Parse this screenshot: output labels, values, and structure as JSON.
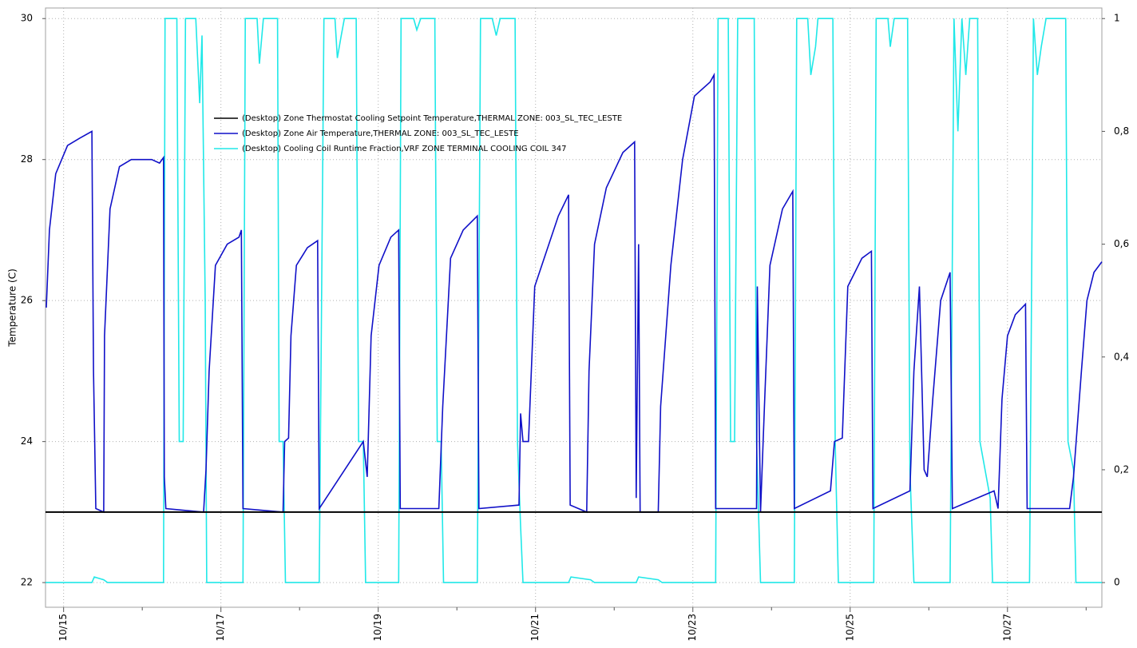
{
  "chart_data": {
    "type": "line",
    "y_label": "Temperature (C)",
    "xlim": [
      14.77,
      28.2
    ],
    "xticks": [
      {
        "value": 15,
        "label": "10/15"
      },
      {
        "value": 17,
        "label": "10/17"
      },
      {
        "value": 19,
        "label": "10/19"
      },
      {
        "value": 21,
        "label": "10/21"
      },
      {
        "value": 23,
        "label": "10/23"
      },
      {
        "value": 25,
        "label": "10/25"
      },
      {
        "value": 27,
        "label": "10/27"
      }
    ],
    "xminor_ticks": [
      16,
      18,
      20,
      22,
      24,
      26,
      28
    ],
    "ylim": [
      21.65,
      30.15
    ],
    "yticks": [
      22,
      24,
      26,
      28,
      30
    ],
    "y2lim": [
      -0.04375,
      1.01875
    ],
    "y2ticks": [
      0,
      {
        "value": 0.2,
        "label": "0,2"
      },
      {
        "value": 0.4,
        "label": "0,4"
      },
      {
        "value": 0.6,
        "label": "0,6"
      },
      {
        "value": 0.8,
        "label": "0,8"
      },
      1
    ],
    "grid": true,
    "legend": "upper left",
    "series": [
      {
        "name": "(Desktop) Zone Thermostat Cooling Setpoint Temperature,THERMAL ZONE: 003_SL_TEC_LESTE",
        "color": "#000000",
        "x": [
          14.77,
          28.2
        ],
        "values": [
          23,
          23
        ]
      },
      {
        "name": "(Desktop) Zone Air Temperature,THERMAL ZONE: 003_SL_TEC_LESTE",
        "color": "#1010c8",
        "x": [
          14.78,
          14.82,
          14.9,
          15.05,
          15.2,
          15.36,
          15.38,
          15.41,
          15.51,
          15.52,
          15.59,
          15.71,
          15.86,
          16.12,
          16.22,
          16.27,
          16.28,
          16.3,
          16.78,
          16.81,
          16.85,
          16.93,
          17.08,
          17.23,
          17.26,
          17.28,
          17.79,
          17.81,
          17.86,
          17.89,
          17.96,
          18.1,
          18.23,
          18.25,
          18.81,
          18.86,
          18.91,
          19.01,
          19.16,
          19.26,
          19.28,
          19.77,
          19.82,
          19.92,
          20.08,
          20.26,
          20.28,
          20.79,
          20.81,
          20.84,
          20.91,
          20.99,
          21.14,
          21.29,
          21.42,
          21.44,
          21.65,
          21.68,
          21.75,
          21.9,
          22.11,
          22.26,
          22.28,
          22.31,
          22.33,
          22.56,
          22.59,
          22.72,
          22.87,
          23.02,
          23.22,
          23.27,
          23.29,
          23.81,
          23.82,
          23.86,
          23.91,
          23.98,
          24.14,
          24.27,
          24.29,
          24.75,
          24.8,
          24.9,
          24.97,
          25.15,
          25.27,
          25.29,
          25.76,
          25.81,
          25.88,
          25.94,
          25.98,
          26.05,
          26.15,
          26.27,
          26.3,
          26.83,
          26.88,
          26.93,
          27.0,
          27.1,
          27.23,
          27.25,
          27.79,
          27.84,
          27.94,
          28.01,
          28.1,
          28.2
        ],
        "values": [
          25.9,
          27.0,
          27.8,
          28.2,
          28.3,
          28.4,
          25,
          23.05,
          23,
          25.5,
          27.3,
          27.9,
          28.0,
          28.0,
          27.95,
          28.03,
          23.5,
          23.05,
          23,
          23.6,
          25,
          26.5,
          26.8,
          26.9,
          27,
          23.05,
          23,
          24,
          24.05,
          25.5,
          26.5,
          26.75,
          26.85,
          23.05,
          24,
          23.5,
          25.5,
          26.5,
          26.9,
          27.0,
          23.05,
          23.05,
          24.5,
          26.6,
          27.0,
          27.2,
          23.05,
          23.1,
          24.4,
          24,
          24,
          26.2,
          26.7,
          27.2,
          27.5,
          23.1,
          23,
          25,
          26.8,
          27.6,
          28.1,
          28.25,
          23.2,
          26.8,
          23,
          23,
          24.5,
          26.5,
          28,
          28.9,
          29.1,
          29.2,
          23.05,
          23.05,
          26.2,
          23,
          24.5,
          26.5,
          27.3,
          27.55,
          23.05,
          23.3,
          24,
          24.05,
          26.2,
          26.6,
          26.7,
          23.05,
          23.3,
          25,
          26.2,
          23.6,
          23.5,
          24.6,
          26.0,
          26.4,
          23.05,
          23.3,
          23.05,
          24.6,
          25.5,
          25.8,
          25.95,
          23.05,
          23.05,
          23.5,
          25,
          26.0,
          26.4,
          26.55
        ]
      },
      {
        "name": "(Desktop) Cooling Coil Runtime Fraction,VRF ZONE TERMINAL COOLING COIL 347",
        "color": "#20e8e8",
        "axis": "y2",
        "x": [
          14.77,
          15.36,
          15.39,
          15.51,
          15.56,
          16.27,
          16.29,
          16.44,
          16.47,
          16.52,
          16.55,
          16.68,
          16.73,
          16.76,
          16.8,
          16.82,
          17.28,
          17.31,
          17.46,
          17.49,
          17.54,
          17.72,
          17.74,
          17.79,
          17.82,
          18.25,
          18.31,
          18.45,
          18.48,
          18.53,
          18.57,
          18.72,
          18.75,
          18.81,
          18.84,
          19.26,
          19.29,
          19.45,
          19.49,
          19.54,
          19.72,
          19.75,
          19.8,
          19.83,
          20.26,
          20.3,
          20.45,
          20.5,
          20.55,
          20.74,
          20.77,
          20.81,
          20.84,
          21.42,
          21.45,
          21.7,
          21.75,
          22.28,
          22.31,
          22.56,
          22.61,
          23.29,
          23.32,
          23.45,
          23.48,
          23.53,
          23.57,
          23.78,
          23.81,
          23.86,
          24.29,
          24.32,
          24.46,
          24.5,
          24.56,
          24.59,
          24.78,
          24.81,
          24.85,
          25.3,
          25.33,
          25.48,
          25.51,
          25.56,
          25.73,
          25.76,
          25.81,
          26.27,
          26.32,
          26.37,
          26.42,
          26.47,
          26.52,
          26.62,
          26.65,
          26.78,
          26.81,
          27.28,
          27.33,
          27.38,
          27.43,
          27.49,
          27.74,
          27.77,
          27.84,
          27.87,
          28.2
        ],
        "values": [
          0,
          0,
          0.01,
          0.005,
          0,
          0,
          1,
          1,
          0.25,
          0.25,
          1,
          1,
          0.85,
          0.97,
          0.5,
          0,
          0,
          1,
          1,
          0.92,
          1,
          1,
          0.25,
          0.25,
          0,
          0,
          1,
          1,
          0.93,
          0.97,
          1,
          1,
          0.25,
          0.25,
          0,
          0,
          1,
          1,
          0.98,
          1,
          1,
          0.25,
          0.25,
          0,
          0,
          1,
          1,
          0.97,
          1,
          1,
          0.25,
          0.1,
          0,
          0,
          0.01,
          0.005,
          0,
          0,
          0.01,
          0.005,
          0,
          0,
          1,
          1,
          0.25,
          0.25,
          1,
          1,
          0.25,
          0,
          0,
          1,
          1,
          0.9,
          0.95,
          1,
          1,
          0.25,
          0,
          0,
          1,
          1,
          0.95,
          1,
          1,
          0.2,
          0,
          0,
          1,
          0.8,
          1,
          0.9,
          1,
          1,
          0.25,
          0.15,
          0,
          0,
          1,
          0.9,
          0.95,
          1,
          1,
          0.25,
          0.2,
          0,
          0
        ]
      }
    ]
  }
}
